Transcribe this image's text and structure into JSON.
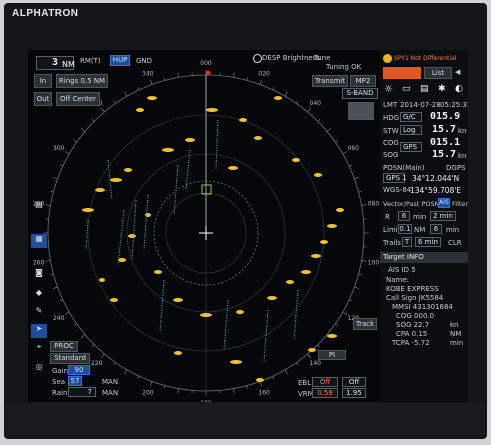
{
  "brand": "ALPHATRON",
  "header": {
    "range_value": "3",
    "range_unit": "NM",
    "rm_label": "RM(T)",
    "mode_label": "HUP",
    "stab_label": "GND",
    "brightness_label": "DESP Brightness",
    "tune_label": "Tune",
    "tuning_status": "Tuning OK",
    "transmit_label": "Transmit",
    "mp_label": "MP2",
    "band_label": "S-BAND",
    "in_label": "In",
    "out_label": "Out",
    "rings_label": "Rings 0.5 NM",
    "off_center_label": "Off Center"
  },
  "alarm": {
    "text": "SPY1 Not Differential",
    "list_label": "List"
  },
  "nav": {
    "lmt_label": "LMT",
    "date": "2014-07-28",
    "time": "05:25:32",
    "hdg_label": "HDG",
    "hdg_source": "G/C",
    "hdg_value": "015.9",
    "stw_label": "STW",
    "stw_source": "Log",
    "stw_value": "15.7",
    "stw_unit": "kn",
    "cog_label": "COG",
    "cog_value": "015.1",
    "sog_label": "SOG",
    "sog_source": "GPS",
    "sog_value": "15.7",
    "sog_unit": "kn",
    "posn_label": "POSN(Main)",
    "posn_source": "DGPS",
    "gps_label": "GPS 1",
    "lat": "34°12.044'N",
    "datum": "WGS-84",
    "lon": "134°59.708'E"
  },
  "vector": {
    "header": "Vector/Past POSN",
    "ais_label": "AIS",
    "filter_label": "Filter",
    "r_label": "R",
    "r_value": "6",
    "r_unit": "min",
    "r_time": "2 min",
    "limit_label": "Limit",
    "limit_value": "0.1",
    "limit_unit": "NM",
    "limit_min": "6",
    "limit_min_unit": "min",
    "trails_label": "Trails",
    "trails_mode": "T",
    "trails_time": "6 min",
    "clr_label": "CLR"
  },
  "target": {
    "header": "Target INFO",
    "id": "AIS ID 5",
    "name_label": "Name:",
    "name": "KOBE EXPRESS",
    "call_sign": "Call Sign JK5584",
    "mmsi": "MMSI 431301684",
    "cog": "COG 000.0",
    "sog": "SOG 22.7",
    "sog_unit": "kn",
    "cpa": "CPA 0.15",
    "cpa_unit": "NM",
    "tcpa": "TCPA -5.72",
    "tcpa_unit": "min"
  },
  "controls": {
    "proc_label": "PROC",
    "standard_label": "Standard",
    "gain_label": "Gain",
    "gain_value": "90",
    "sea_label": "Sea",
    "sea_value": "57",
    "sea_mode": "MAN",
    "rain_label": "Rain",
    "rain_value": "7",
    "rain_mode": "MAN",
    "track_label": "Track",
    "pi_label": "PI",
    "ebl_label": "EBL",
    "ebl_value": "Off",
    "ebl2_value": "Off",
    "vrm_label": "VRM",
    "vrm_value": "0.58",
    "vrm2_value": "1.95"
  },
  "bearing_labels": [
    "000",
    "010",
    "020",
    "030",
    "040",
    "050",
    "060",
    "070",
    "080",
    "090",
    "100",
    "110",
    "120",
    "130",
    "140",
    "150",
    "160",
    "170",
    "180",
    "190",
    "200",
    "210",
    "220",
    "230",
    "240",
    "250",
    "260",
    "270",
    "280",
    "290",
    "300",
    "310",
    "320",
    "330",
    "340",
    "350"
  ],
  "colors": {
    "accent": "#ff7a2a",
    "ais_blue": "#2f6fe0",
    "echo_yellow": "#f2c12e",
    "trail_teal": "#2fb9b0"
  }
}
